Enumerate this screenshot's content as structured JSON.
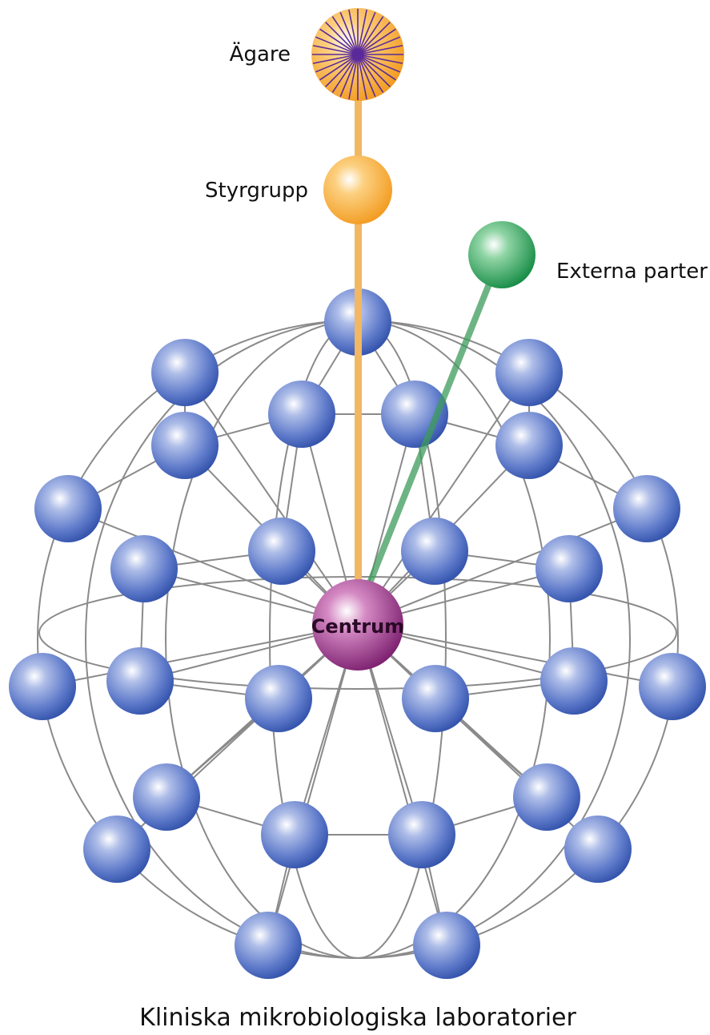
{
  "nodes": [
    {
      "label": "Ägare"
    },
    {
      "label": "Styrgrupp"
    },
    {
      "label": "Externa parter"
    },
    {
      "label": "Centrum"
    }
  ],
  "caption": "Kliniska mikrobiologiska laboratorier"
}
